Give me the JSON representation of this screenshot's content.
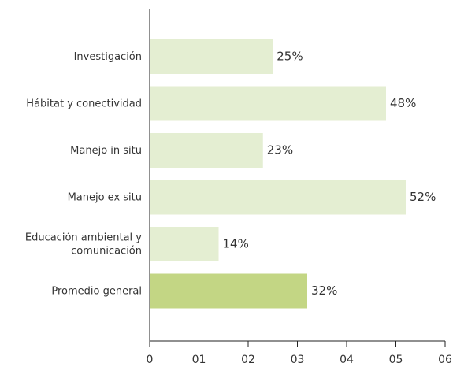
{
  "chart_data": {
    "type": "bar",
    "orientation": "horizontal",
    "categories": [
      "Investigación",
      "Hábitat y conectividad",
      "Manejo in situ",
      "Manejo ex situ",
      "Educación ambiental y\ncomunicación",
      "Promedio general"
    ],
    "values": [
      2.5,
      4.8,
      2.3,
      5.2,
      1.4,
      3.2
    ],
    "value_labels": [
      "25%",
      "48%",
      "23%",
      "52%",
      "14%",
      "32%"
    ],
    "colors": [
      "#e4eed2",
      "#e4eed2",
      "#e4eed2",
      "#e4eed2",
      "#e4eed2",
      "#c3d684"
    ],
    "xlim": [
      0,
      6
    ],
    "xticks": [
      0,
      {
        "value": 1,
        "label": "01"
      },
      {
        "value": 2,
        "label": "02"
      },
      {
        "value": 3,
        "label": "03"
      },
      {
        "value": 4,
        "label": "04"
      },
      {
        "value": 5,
        "label": "05"
      },
      {
        "value": 6,
        "label": "06"
      }
    ],
    "grid": false
  }
}
